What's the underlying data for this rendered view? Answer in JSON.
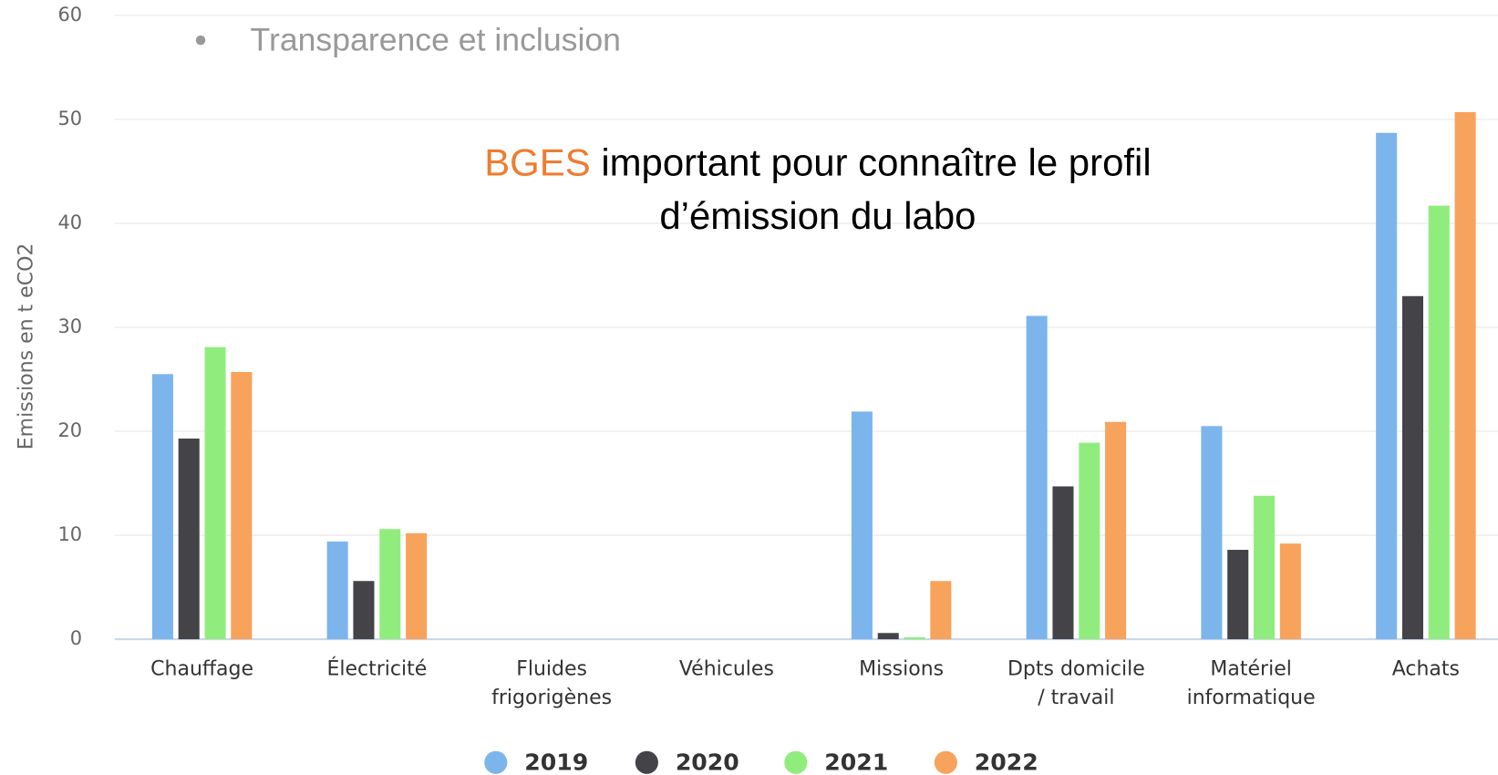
{
  "chart_data": {
    "type": "bar",
    "annotations": {
      "bullet": "Transparence et inclusion",
      "highlight": "BGES",
      "text": [
        "important pour connaître le profil",
        "d’émission du labo"
      ]
    },
    "ylabel": "Emissions en t eCO2",
    "categories": [
      "Chauffage",
      "Électricité",
      "Fluides\nfrigorigènes",
      "Véhicules",
      "Missions",
      "Dpts domicile\n/ travail",
      "Matériel\ninformatique",
      "Achats"
    ],
    "series": [
      {
        "name": "2019",
        "color": "#7cb5ec",
        "values": [
          25.5,
          9.4,
          0,
          0,
          21.9,
          31.1,
          20.5,
          48.7
        ]
      },
      {
        "name": "2020",
        "color": "#434348",
        "values": [
          19.3,
          5.6,
          0,
          0,
          0.6,
          14.7,
          8.6,
          33.0
        ]
      },
      {
        "name": "2021",
        "color": "#90ed7d",
        "values": [
          28.1,
          10.6,
          0,
          0,
          0.2,
          18.9,
          13.8,
          41.7
        ]
      },
      {
        "name": "2022",
        "color": "#f7a35c",
        "values": [
          25.7,
          10.2,
          0,
          0,
          5.6,
          20.9,
          9.2,
          50.7
        ]
      }
    ],
    "ylim": [
      0,
      60
    ],
    "yticks": [
      0,
      10,
      20,
      30,
      40,
      50,
      60
    ],
    "grid": true,
    "legend": "bottom"
  }
}
